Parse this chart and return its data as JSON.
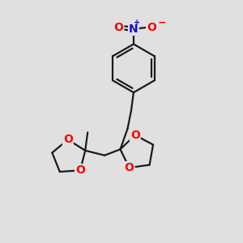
{
  "background_color": "#e0e0e0",
  "bond_color": "#1a1a1a",
  "bond_width": 1.6,
  "atom_colors": {
    "O": "#ff0000",
    "N": "#1111cc",
    "C": "#1a1a1a"
  },
  "figsize": [
    3.0,
    3.0
  ],
  "dpi": 100,
  "xlim": [
    0,
    10
  ],
  "ylim": [
    0,
    10
  ]
}
